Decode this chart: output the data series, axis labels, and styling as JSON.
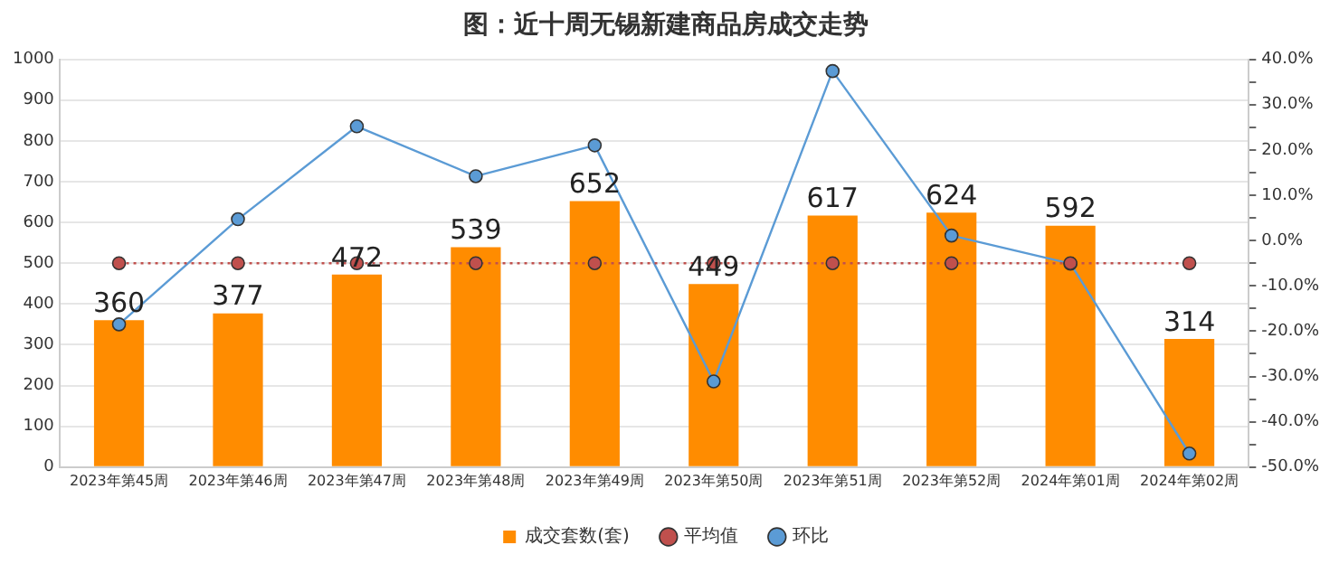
{
  "chart_data": {
    "type": "bar",
    "title": "图：近十周无锡新建商品房成交走势",
    "categories": [
      "2023年第45周",
      "2023年第46周",
      "2023年第47周",
      "2023年第48周",
      "2023年第49周",
      "2023年第50周",
      "2023年第51周",
      "2023年第52周",
      "2024年第01周",
      "2024年第02周"
    ],
    "series": [
      {
        "name": "成交套数(套)",
        "color": "#ff8c00",
        "values": [
          360,
          377,
          472,
          539,
          652,
          449,
          617,
          624,
          592,
          314
        ],
        "value_labels": [
          "360",
          "377",
          "472",
          "539",
          "652",
          "449",
          "617",
          "624",
          "592",
          "314"
        ]
      },
      {
        "name": "平均值",
        "type": "line",
        "color": "#c0504d",
        "line_style": "dotted",
        "values": [
          500,
          500,
          500,
          500,
          500,
          500,
          500,
          500,
          500,
          500
        ]
      },
      {
        "name": "环比",
        "type": "line",
        "axis": "y2",
        "color": "#5b9bd5",
        "values": [
          -18.5,
          4.7,
          25.2,
          14.2,
          21.0,
          -31.1,
          37.4,
          1.1,
          -5.1,
          -47.0
        ]
      }
    ],
    "ylim": [
      0,
      1000
    ],
    "yticks": [
      0,
      100,
      200,
      300,
      400,
      500,
      600,
      700,
      800,
      900,
      1000
    ],
    "y2lim": [
      -50,
      40
    ],
    "y2ticks": [
      {
        "value": -50,
        "label": "-50.0%"
      },
      {
        "value": -45,
        "label": null
      },
      {
        "value": -40,
        "label": "-40.0%"
      },
      {
        "value": -35,
        "label": null
      },
      {
        "value": -30,
        "label": "-30.0%"
      },
      {
        "value": -25,
        "label": null
      },
      {
        "value": -20,
        "label": "-20.0%"
      },
      {
        "value": -15,
        "label": null
      },
      {
        "value": -10,
        "label": "-10.0%"
      },
      {
        "value": -5,
        "label": null
      },
      {
        "value": 0,
        "label": "0.0%"
      },
      {
        "value": 5,
        "label": null
      },
      {
        "value": 10,
        "label": "10.0%"
      },
      {
        "value": 15,
        "label": null
      },
      {
        "value": 20,
        "label": "20.0%"
      },
      {
        "value": 25,
        "label": null
      },
      {
        "value": 30,
        "label": "30.0%"
      },
      {
        "value": 35,
        "label": null
      },
      {
        "value": 40,
        "label": "40.0%"
      }
    ],
    "grid": "y",
    "legend": "bottom",
    "marker": "circle"
  }
}
